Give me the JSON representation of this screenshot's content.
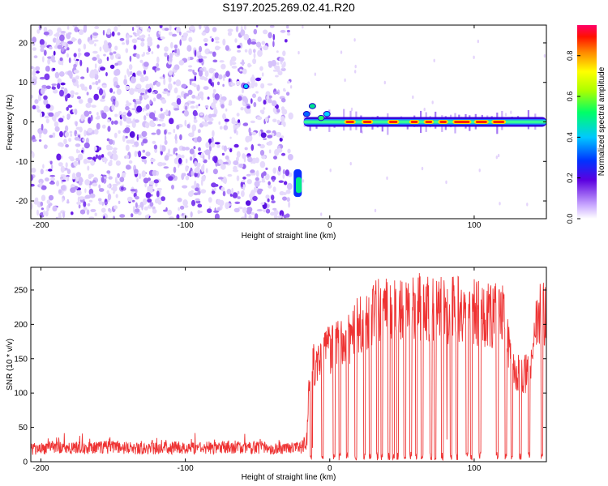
{
  "page": {
    "title": "S197.2025.269.02.41.R20"
  },
  "chart_data": [
    {
      "type": "heatmap",
      "title": "S197.2025.269.02.41.R20",
      "xlabel": "Height of straight line (km)",
      "ylabel": "Frequency (Hz)",
      "xlim": [
        -207,
        150
      ],
      "ylim": [
        -24.5,
        24.5
      ],
      "xticks": [
        -200,
        -100,
        0,
        100
      ],
      "xtick_labels": [
        "-200",
        "-100",
        "0",
        "100"
      ],
      "yticks": [
        20,
        10,
        0,
        -10,
        -20
      ],
      "ytick_labels": [
        "20",
        "10",
        "0",
        "-10",
        "-20"
      ],
      "noise_region_x": [
        -207,
        -27
      ],
      "signal_track_frequency": 0,
      "signal_track_x": [
        -27,
        150
      ],
      "colorbar": {
        "label": "Normalized spectral amplitude",
        "range": [
          0,
          0.95
        ],
        "ticks": [
          0.0,
          0.2,
          0.4,
          0.6,
          0.8
        ],
        "tick_labels": [
          "0.0",
          "0.2",
          "0.4",
          "0.6",
          "0.8"
        ]
      }
    },
    {
      "type": "line",
      "xlabel": "Height of straight line (km)",
      "ylabel": "SNR (10 * v/v)",
      "xlim": [
        -207,
        150
      ],
      "ylim": [
        0,
        283
      ],
      "xticks": [
        -200,
        -100,
        0,
        100
      ],
      "xtick_labels": [
        "-200",
        "-100",
        "0",
        "100"
      ],
      "yticks": [
        0,
        50,
        100,
        150,
        200,
        250
      ],
      "ytick_labels": [
        "0",
        "50",
        "100",
        "150",
        "200",
        "250"
      ],
      "line_color": "#ee3333",
      "series": [
        {
          "name": "SNR",
          "x": [
            -207,
            -190,
            -170,
            -150,
            -130,
            -110,
            -90,
            -70,
            -50,
            -30,
            -20,
            -16,
            -14,
            -12,
            -10,
            -5,
            0,
            5,
            10,
            15,
            20,
            25,
            30,
            35,
            40,
            45,
            50,
            55,
            60,
            65,
            70,
            75,
            80,
            85,
            90,
            95,
            100,
            105,
            110,
            115,
            120,
            125,
            130,
            135,
            140,
            145,
            150
          ],
          "values": [
            18,
            20,
            19,
            21,
            18,
            20,
            19,
            21,
            20,
            18,
            20,
            30,
            130,
            160,
            150,
            170,
            175,
            180,
            190,
            200,
            215,
            225,
            230,
            235,
            238,
            240,
            240,
            238,
            242,
            240,
            240,
            238,
            235,
            240,
            238,
            236,
            234,
            232,
            230,
            228,
            225,
            165,
            140,
            135,
            170,
            235,
            230
          ]
        }
      ]
    }
  ]
}
